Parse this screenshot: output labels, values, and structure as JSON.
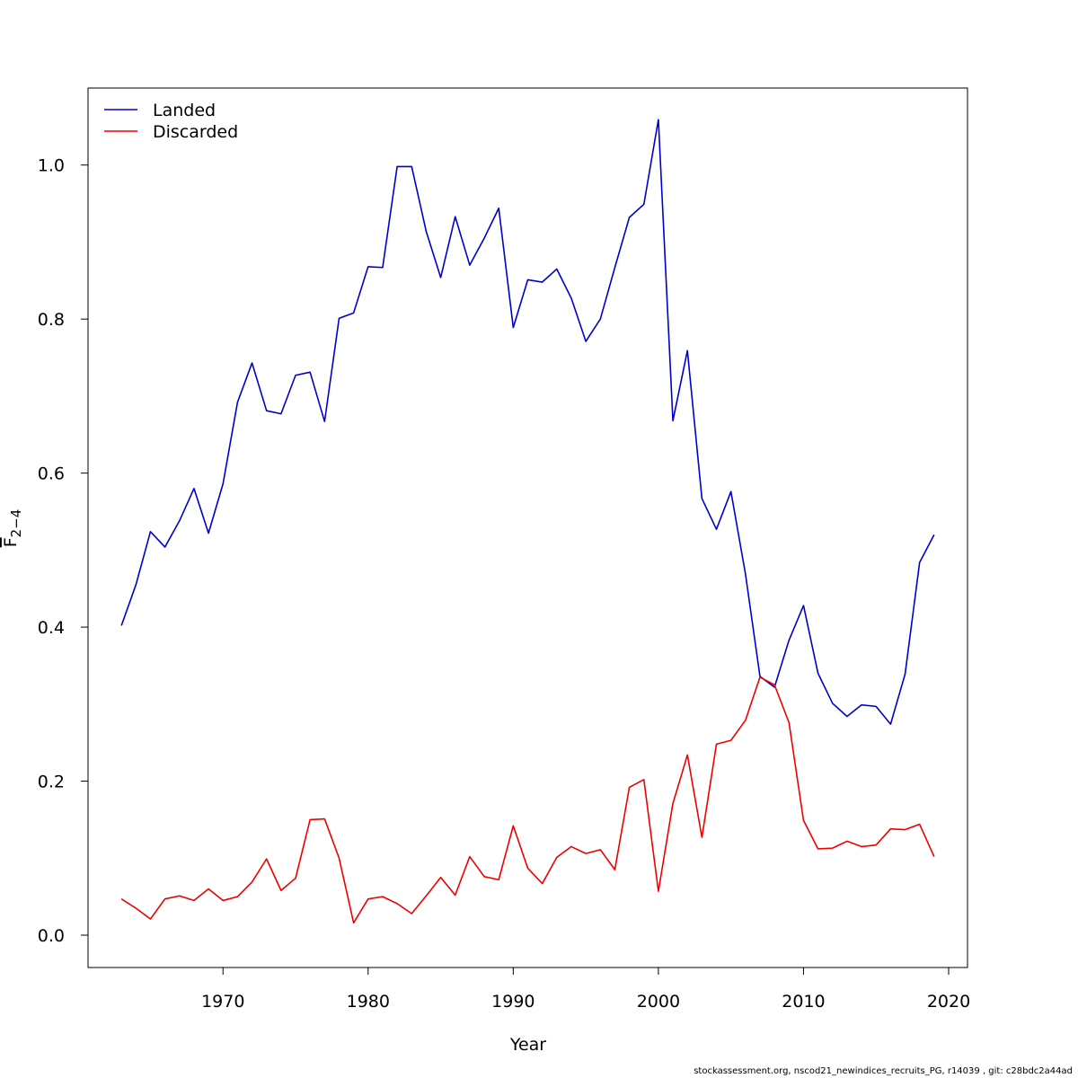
{
  "footer": "stockassessment.org, nscod21_newindices_recruits_PG, r14039 , git: c28bdc2a44ad",
  "chart_data": {
    "type": "line",
    "xlabel": "Year",
    "ylabel_main": "F",
    "ylabel_sub": "2−4",
    "xlim": [
      1960.7,
      2021.3
    ],
    "ylim": [
      -0.042,
      1.1
    ],
    "xticks": [
      1970,
      1980,
      1990,
      2000,
      2010,
      2020
    ],
    "yticks": [
      0.0,
      0.2,
      0.4,
      0.6,
      0.8,
      1.0
    ],
    "xtick_labels": [
      "1970",
      "1980",
      "1990",
      "2000",
      "2010",
      "2020"
    ],
    "ytick_labels": [
      "0.0",
      "0.2",
      "0.4",
      "0.6",
      "0.8",
      "1.0"
    ],
    "legend_position": "top-left",
    "grid": false,
    "x": [
      1963,
      1964,
      1965,
      1966,
      1967,
      1968,
      1969,
      1970,
      1971,
      1972,
      1973,
      1974,
      1975,
      1976,
      1977,
      1978,
      1979,
      1980,
      1981,
      1982,
      1983,
      1984,
      1985,
      1986,
      1987,
      1988,
      1989,
      1990,
      1991,
      1992,
      1993,
      1994,
      1995,
      1996,
      1997,
      1998,
      1999,
      2000,
      2001,
      2002,
      2003,
      2004,
      2005,
      2006,
      2007,
      2008,
      2009,
      2010,
      2011,
      2012,
      2013,
      2014,
      2015,
      2016,
      2017,
      2018,
      2019
    ],
    "series": [
      {
        "name": "Landed",
        "color": "#0000cd",
        "values": [
          0.402,
          0.455,
          0.524,
          0.504,
          0.538,
          0.58,
          0.522,
          0.586,
          0.692,
          0.743,
          0.681,
          0.677,
          0.727,
          0.731,
          0.667,
          0.801,
          0.808,
          0.868,
          0.867,
          0.998,
          0.998,
          0.914,
          0.854,
          0.933,
          0.87,
          0.905,
          0.944,
          0.789,
          0.851,
          0.848,
          0.865,
          0.827,
          0.771,
          0.8,
          0.867,
          0.932,
          0.949,
          1.059,
          0.668,
          0.759,
          0.567,
          0.527,
          0.576,
          0.469,
          0.336,
          0.322,
          0.383,
          0.428,
          0.34,
          0.301,
          0.284,
          0.299,
          0.297,
          0.274,
          0.339,
          0.484,
          0.52
        ]
      },
      {
        "name": "Discarded",
        "color": "#ee0000",
        "values": [
          0.047,
          0.035,
          0.021,
          0.047,
          0.051,
          0.045,
          0.06,
          0.045,
          0.05,
          0.069,
          0.099,
          0.058,
          0.074,
          0.15,
          0.151,
          0.1,
          0.016,
          0.047,
          0.05,
          0.041,
          0.028,
          0.051,
          0.075,
          0.052,
          0.102,
          0.076,
          0.072,
          0.142,
          0.087,
          0.067,
          0.101,
          0.115,
          0.106,
          0.111,
          0.085,
          0.192,
          0.202,
          0.057,
          0.171,
          0.234,
          0.127,
          0.248,
          0.253,
          0.279,
          0.335,
          0.325,
          0.276,
          0.149,
          0.112,
          0.113,
          0.122,
          0.115,
          0.117,
          0.138,
          0.137,
          0.144,
          0.102
        ]
      }
    ]
  }
}
